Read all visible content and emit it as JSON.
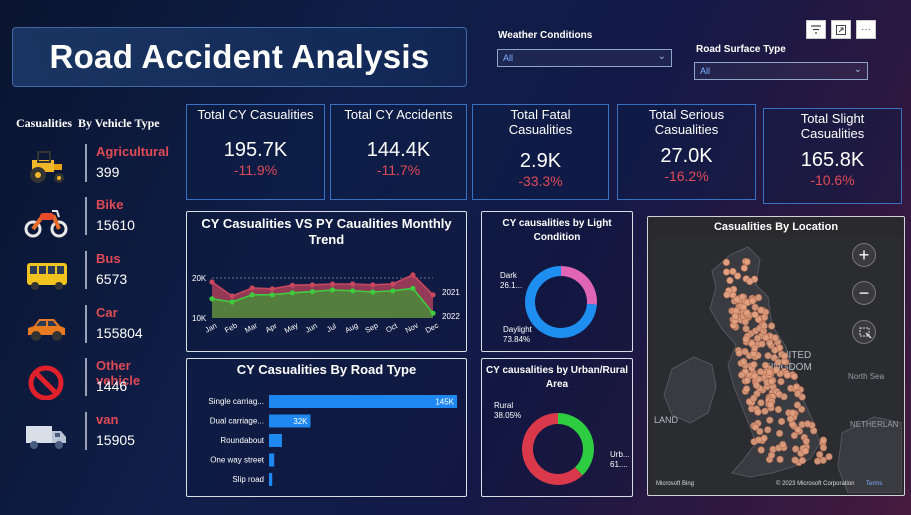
{
  "title": "Road Accident Analysis",
  "filters": {
    "weather": {
      "label": "Weather Conditions",
      "value": "All"
    },
    "surface": {
      "label": "Road Surface Type",
      "value": "All"
    }
  },
  "toolbar": {
    "filter_icon": "filter-icon",
    "focus_icon": "focus-mode-icon",
    "more_icon": "more-options-icon",
    "more_label": "···"
  },
  "vehicles": {
    "header_a": "Casualities",
    "header_b": "By Vehicle Type",
    "items": [
      {
        "name": "Agricultural",
        "value": "399",
        "icon": "tractor-icon"
      },
      {
        "name": "Bike",
        "value": "15610",
        "icon": "motorbike-icon"
      },
      {
        "name": "Bus",
        "value": "6573",
        "icon": "bus-icon"
      },
      {
        "name": "Car",
        "value": "155804",
        "icon": "car-icon"
      },
      {
        "name": "Other vehicle",
        "value": "1446",
        "icon": "no-entry-icon"
      },
      {
        "name": "van",
        "value": "15905",
        "icon": "truck-icon"
      }
    ]
  },
  "kpis": [
    {
      "label": "Total CY Casualities",
      "value": "195.7K",
      "change": "-11.9%"
    },
    {
      "label": "Total CY Accidents",
      "value": "144.4K",
      "change": "-11.7%"
    },
    {
      "label": "Total Fatal Casualities",
      "value": "2.9K",
      "change": "-33.3%"
    },
    {
      "label": "Total Serious Casualities",
      "value": "27.0K",
      "change": "-16.2%"
    },
    {
      "label": "Total Slight Casualities",
      "value": "165.8K",
      "change": "-10.6%"
    }
  ],
  "colors": {
    "accent_red": "#e04a56",
    "cy": "#1e90ff",
    "pink": "#e066b5",
    "green": "#2ecc40",
    "red": "#d9394a",
    "bar": "#1e88f0"
  },
  "chart_data": [
    {
      "type": "area",
      "title": "CY Casualities VS PY Caualities Monthly Trend",
      "categories": [
        "Jan",
        "Feb",
        "Mar",
        "Apr",
        "May",
        "Jun",
        "Jul",
        "Aug",
        "Sep",
        "Oct",
        "Nov",
        "Dec"
      ],
      "y_ticks": [
        "20K",
        "10K"
      ],
      "ylim": [
        10000,
        20000
      ],
      "series": [
        {
          "name": "2021",
          "values": [
            19000,
            15500,
            17500,
            17300,
            18200,
            18300,
            18500,
            18500,
            18300,
            18500,
            20800,
            15800
          ]
        },
        {
          "name": "2022",
          "values": [
            14800,
            14000,
            15800,
            15800,
            16300,
            16600,
            17000,
            16800,
            16500,
            16800,
            17400,
            11200
          ]
        }
      ]
    },
    {
      "type": "pie",
      "title": "CY causalities by Light Condition",
      "slices": [
        {
          "label": "Dark",
          "value": 26.16,
          "display": "26.1..."
        },
        {
          "label": "Daylight",
          "value": 73.84,
          "display": "73.84%"
        }
      ]
    },
    {
      "type": "bar",
      "title": "CY Casualities By Road Type",
      "categories": [
        "Single carriag...",
        "Dual carriage...",
        "Roundabout",
        "One way street",
        "Slip road"
      ],
      "values": [
        145000,
        32000,
        10000,
        4000,
        2500
      ],
      "data_labels": [
        "145K",
        "32K",
        "",
        "",
        ""
      ]
    },
    {
      "type": "pie",
      "title": "CY causalities by Urban/Rural Area",
      "slices": [
        {
          "label": "Rural",
          "value": 38.05,
          "display": "38.05%"
        },
        {
          "label": "Urb...",
          "value": 61.95,
          "display": "61...."
        }
      ]
    }
  ],
  "map": {
    "title": "Casualities By Location",
    "labels": [
      "UNITED",
      "KINGDOM",
      "North Sea",
      "NETHERLAN",
      "LAND"
    ],
    "attribution_left": "Microsoft Bing",
    "attribution_right": "© 2023 Microsoft Corporation",
    "terms": "Terms",
    "zoom_in": "+",
    "zoom_out": "−"
  }
}
